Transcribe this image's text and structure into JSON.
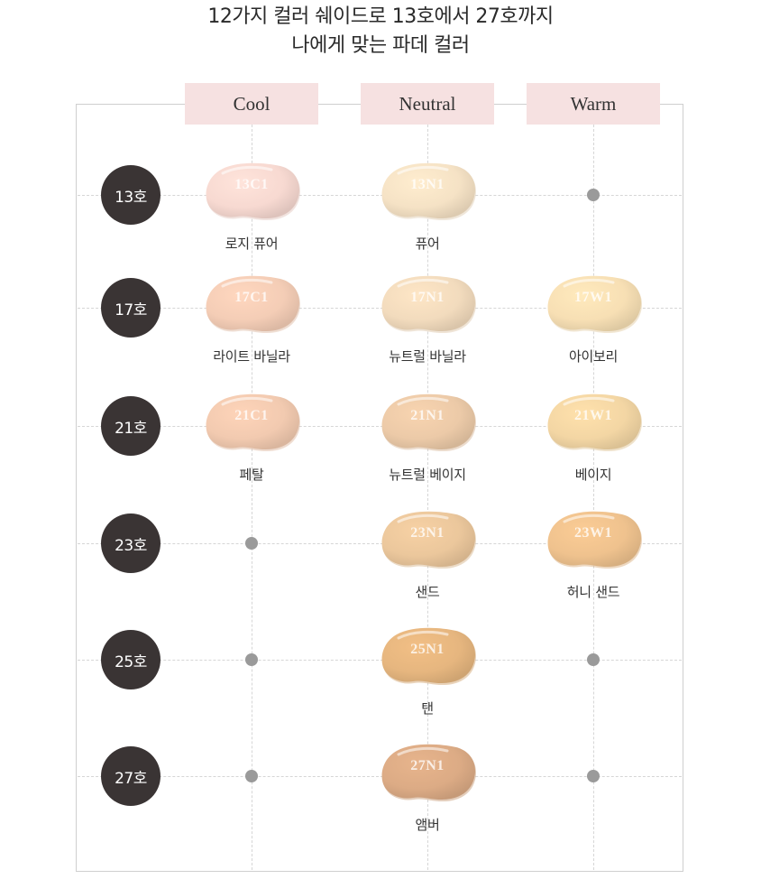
{
  "title": {
    "line1": "12가지 컬러 쉐이드로 13호에서 27호까지",
    "line2": "나에게 맞는 파데 컬러"
  },
  "columns": [
    "Cool",
    "Neutral",
    "Warm"
  ],
  "rows": [
    "13호",
    "17호",
    "21호",
    "23호",
    "25호",
    "27호"
  ],
  "shades": [
    {
      "code": "13C1",
      "name": "로지 퓨어",
      "color": "#f7d9d1",
      "row": 0,
      "col": 0
    },
    {
      "code": "13N1",
      "name": "퓨어",
      "color": "#f5e2c5",
      "row": 0,
      "col": 1
    },
    {
      "code": "17C1",
      "name": "라이트 바닐라",
      "color": "#f4cdb6",
      "row": 1,
      "col": 0
    },
    {
      "code": "17N1",
      "name": "뉴트럴 바닐라",
      "color": "#f2dbbd",
      "row": 1,
      "col": 1
    },
    {
      "code": "17W1",
      "name": "아이보리",
      "color": "#f7dfb4",
      "row": 1,
      "col": 2
    },
    {
      "code": "21C1",
      "name": "페탈",
      "color": "#f2cab0",
      "row": 2,
      "col": 0
    },
    {
      "code": "21N1",
      "name": "뉴트럴 베이지",
      "color": "#eccaa8",
      "row": 2,
      "col": 1
    },
    {
      "code": "21W1",
      "name": "베이지",
      "color": "#f3d6a4",
      "row": 2,
      "col": 2
    },
    {
      "code": "23N1",
      "name": "샌드",
      "color": "#ebc79c",
      "row": 3,
      "col": 1
    },
    {
      "code": "23W1",
      "name": "허니 샌드",
      "color": "#efc28e",
      "row": 3,
      "col": 2
    },
    {
      "code": "25N1",
      "name": "탠",
      "color": "#e6b67f",
      "row": 4,
      "col": 1
    },
    {
      "code": "27N1",
      "name": "앰버",
      "color": "#dcab85",
      "row": 5,
      "col": 1
    }
  ],
  "empty_slots": [
    {
      "row": 0,
      "col": 2
    },
    {
      "row": 3,
      "col": 0
    },
    {
      "row": 4,
      "col": 0
    },
    {
      "row": 4,
      "col": 2
    },
    {
      "row": 5,
      "col": 0
    },
    {
      "row": 5,
      "col": 2
    }
  ]
}
